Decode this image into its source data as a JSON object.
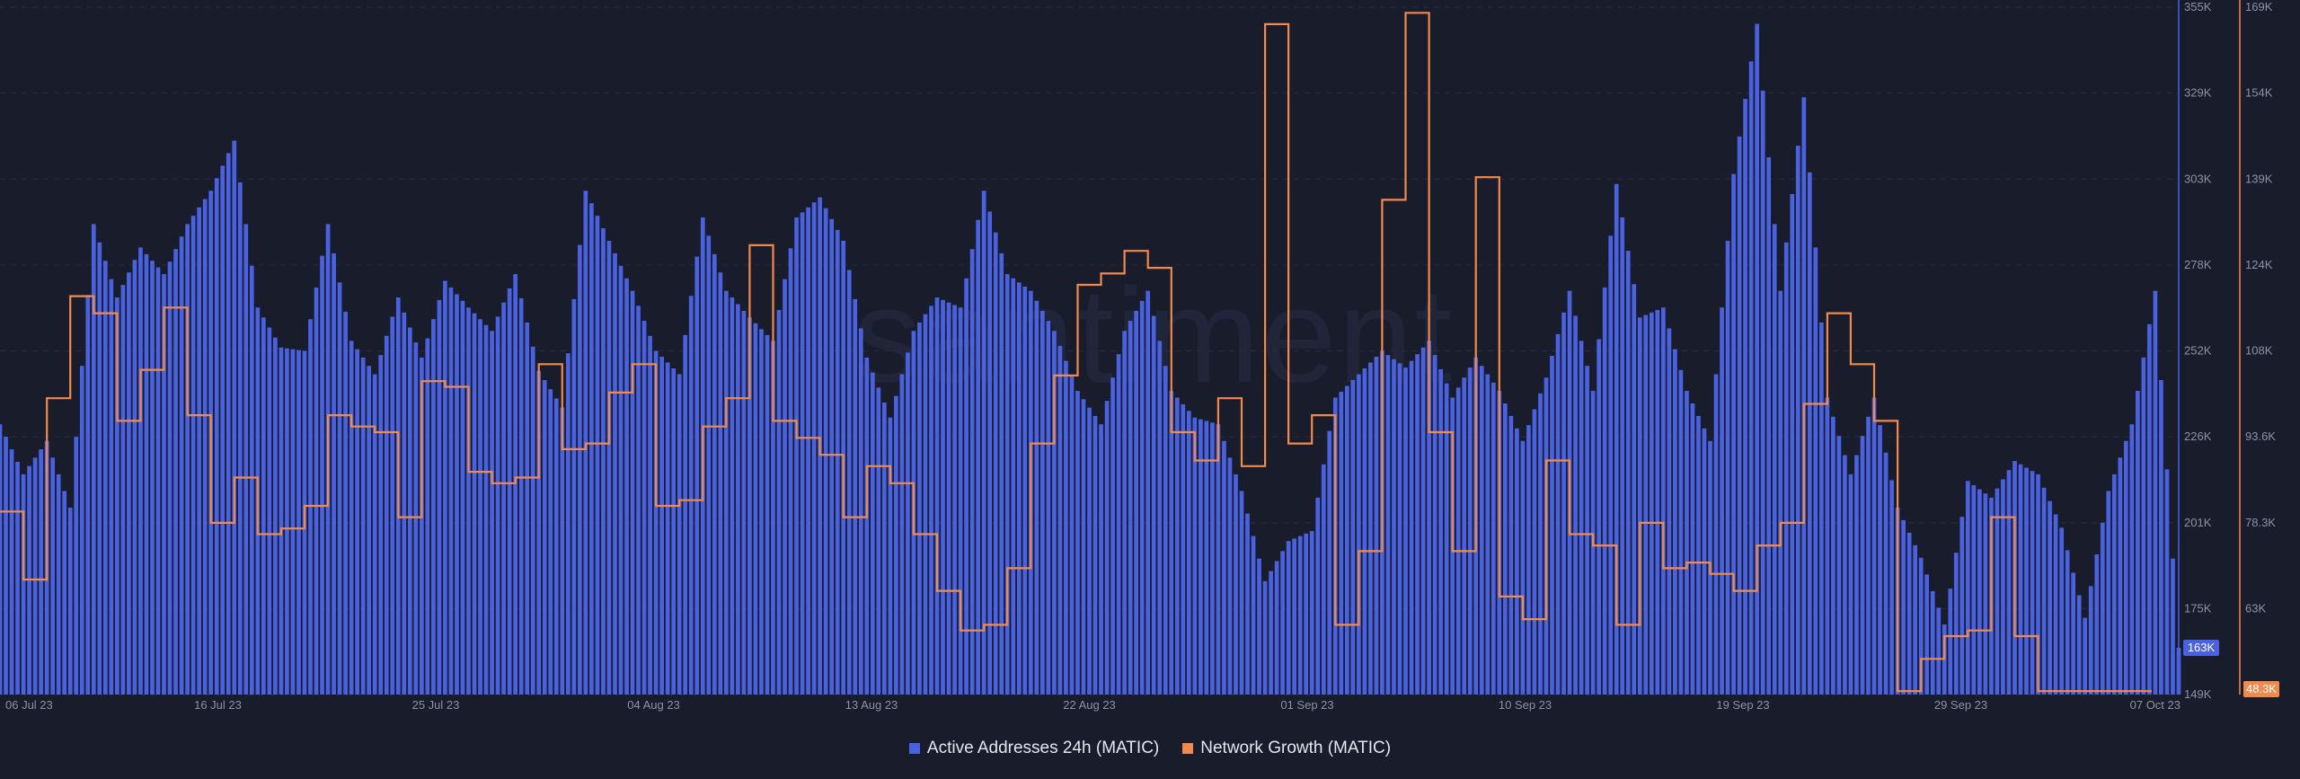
{
  "watermark": "santiment.",
  "chart_data": {
    "type": "bar+line",
    "x_ticks": [
      "06 Jul 23",
      "16 Jul 23",
      "25 Jul 23",
      "04 Aug 23",
      "13 Aug 23",
      "22 Aug 23",
      "01 Sep 23",
      "10 Sep 23",
      "19 Sep 23",
      "29 Sep 23",
      "07 Oct 23"
    ],
    "x_range": [
      "2023-07-06",
      "2023-10-07"
    ],
    "grid": true,
    "legend_placement": "bottom-center",
    "series": [
      {
        "name": "Active Addresses 24h (MATIC)",
        "type": "bar",
        "axis": "left",
        "color": "#4a62e0",
        "last_value_label": "163K",
        "ylim": [
          149000,
          355000
        ],
        "y_ticks": [
          "149K",
          "175K",
          "201K",
          "226K",
          "252K",
          "278K",
          "303K",
          "329K",
          "355K"
        ],
        "points": [
          [
            "2023-07-06",
            230000
          ],
          [
            "2023-07-07",
            215000
          ],
          [
            "2023-07-08",
            225000
          ],
          [
            "2023-07-09",
            205000
          ],
          [
            "2023-07-10",
            290000
          ],
          [
            "2023-07-11",
            268000
          ],
          [
            "2023-07-12",
            283000
          ],
          [
            "2023-07-13",
            275000
          ],
          [
            "2023-07-14",
            290000
          ],
          [
            "2023-07-15",
            300000
          ],
          [
            "2023-07-16",
            315000
          ],
          [
            "2023-07-17",
            265000
          ],
          [
            "2023-07-18",
            253000
          ],
          [
            "2023-07-19",
            252000
          ],
          [
            "2023-07-20",
            290000
          ],
          [
            "2023-07-21",
            255000
          ],
          [
            "2023-07-22",
            245000
          ],
          [
            "2023-07-23",
            268000
          ],
          [
            "2023-07-24",
            250000
          ],
          [
            "2023-07-25",
            273000
          ],
          [
            "2023-07-26",
            265000
          ],
          [
            "2023-07-27",
            258000
          ],
          [
            "2023-07-28",
            275000
          ],
          [
            "2023-07-29",
            246000
          ],
          [
            "2023-07-30",
            235000
          ],
          [
            "2023-07-31",
            300000
          ],
          [
            "2023-08-01",
            285000
          ],
          [
            "2023-08-02",
            270000
          ],
          [
            "2023-08-03",
            252000
          ],
          [
            "2023-08-04",
            245000
          ],
          [
            "2023-08-05",
            292000
          ],
          [
            "2023-08-06",
            270000
          ],
          [
            "2023-08-07",
            262000
          ],
          [
            "2023-08-08",
            255000
          ],
          [
            "2023-08-09",
            292000
          ],
          [
            "2023-08-10",
            298000
          ],
          [
            "2023-08-11",
            285000
          ],
          [
            "2023-08-12",
            250000
          ],
          [
            "2023-08-13",
            232000
          ],
          [
            "2023-08-14",
            258000
          ],
          [
            "2023-08-15",
            268000
          ],
          [
            "2023-08-16",
            265000
          ],
          [
            "2023-08-17",
            300000
          ],
          [
            "2023-08-18",
            275000
          ],
          [
            "2023-08-19",
            270000
          ],
          [
            "2023-08-20",
            258000
          ],
          [
            "2023-08-21",
            240000
          ],
          [
            "2023-08-22",
            230000
          ],
          [
            "2023-08-23",
            258000
          ],
          [
            "2023-08-24",
            270000
          ],
          [
            "2023-08-25",
            240000
          ],
          [
            "2023-08-26",
            232000
          ],
          [
            "2023-08-27",
            230000
          ],
          [
            "2023-08-28",
            210000
          ],
          [
            "2023-08-29",
            183000
          ],
          [
            "2023-08-30",
            195000
          ],
          [
            "2023-08-31",
            198000
          ],
          [
            "2023-09-01",
            238000
          ],
          [
            "2023-09-02",
            245000
          ],
          [
            "2023-09-03",
            252000
          ],
          [
            "2023-09-04",
            247000
          ],
          [
            "2023-09-05",
            255000
          ],
          [
            "2023-09-06",
            238000
          ],
          [
            "2023-09-07",
            250000
          ],
          [
            "2023-09-08",
            240000
          ],
          [
            "2023-09-09",
            225000
          ],
          [
            "2023-09-10",
            244000
          ],
          [
            "2023-09-11",
            270000
          ],
          [
            "2023-09-12",
            240000
          ],
          [
            "2023-09-13",
            302000
          ],
          [
            "2023-09-14",
            262000
          ],
          [
            "2023-09-15",
            265000
          ],
          [
            "2023-09-16",
            240000
          ],
          [
            "2023-09-17",
            225000
          ],
          [
            "2023-09-18",
            305000
          ],
          [
            "2023-09-19",
            350000
          ],
          [
            "2023-09-20",
            270000
          ],
          [
            "2023-09-21",
            328000
          ],
          [
            "2023-09-22",
            238000
          ],
          [
            "2023-09-23",
            215000
          ],
          [
            "2023-09-24",
            238000
          ],
          [
            "2023-09-25",
            205000
          ],
          [
            "2023-09-26",
            190000
          ],
          [
            "2023-09-27",
            170000
          ],
          [
            "2023-09-28",
            213000
          ],
          [
            "2023-09-29",
            208000
          ],
          [
            "2023-09-30",
            219000
          ],
          [
            "2023-10-01",
            215000
          ],
          [
            "2023-10-02",
            199000
          ],
          [
            "2023-10-03",
            172000
          ],
          [
            "2023-10-04",
            210000
          ],
          [
            "2023-10-05",
            230000
          ],
          [
            "2023-10-06",
            270000
          ],
          [
            "2023-10-07",
            163000
          ]
        ]
      },
      {
        "name": "Network Growth (MATIC)",
        "type": "line",
        "axis": "right",
        "color": "#f28a4e",
        "last_value_label": "48.3K",
        "ylim": [
          47700,
          169000
        ],
        "y_ticks": [
          "",
          "63K",
          "78.3K",
          "93.6K",
          "108K",
          "124K",
          "139K",
          "154K",
          "169K"
        ],
        "points": [
          [
            "2023-07-06",
            80000
          ],
          [
            "2023-07-07",
            68000
          ],
          [
            "2023-07-08",
            100000
          ],
          [
            "2023-07-09",
            118000
          ],
          [
            "2023-07-10",
            115000
          ],
          [
            "2023-07-11",
            96000
          ],
          [
            "2023-07-12",
            105000
          ],
          [
            "2023-07-13",
            116000
          ],
          [
            "2023-07-14",
            97000
          ],
          [
            "2023-07-15",
            78000
          ],
          [
            "2023-07-16",
            86000
          ],
          [
            "2023-07-17",
            76000
          ],
          [
            "2023-07-18",
            77000
          ],
          [
            "2023-07-19",
            81000
          ],
          [
            "2023-07-20",
            97000
          ],
          [
            "2023-07-21",
            95000
          ],
          [
            "2023-07-22",
            94000
          ],
          [
            "2023-07-23",
            79000
          ],
          [
            "2023-07-24",
            103000
          ],
          [
            "2023-07-25",
            102000
          ],
          [
            "2023-07-26",
            87000
          ],
          [
            "2023-07-27",
            85000
          ],
          [
            "2023-07-28",
            86000
          ],
          [
            "2023-07-29",
            106000
          ],
          [
            "2023-07-30",
            91000
          ],
          [
            "2023-07-31",
            92000
          ],
          [
            "2023-08-01",
            101000
          ],
          [
            "2023-08-02",
            106000
          ],
          [
            "2023-08-03",
            81000
          ],
          [
            "2023-08-04",
            82000
          ],
          [
            "2023-08-05",
            95000
          ],
          [
            "2023-08-06",
            100000
          ],
          [
            "2023-08-07",
            127000
          ],
          [
            "2023-08-08",
            96000
          ],
          [
            "2023-08-09",
            93000
          ],
          [
            "2023-08-10",
            90000
          ],
          [
            "2023-08-11",
            79000
          ],
          [
            "2023-08-12",
            88000
          ],
          [
            "2023-08-13",
            85000
          ],
          [
            "2023-08-14",
            76000
          ],
          [
            "2023-08-15",
            66000
          ],
          [
            "2023-08-16",
            59000
          ],
          [
            "2023-08-17",
            60000
          ],
          [
            "2023-08-18",
            70000
          ],
          [
            "2023-08-19",
            92000
          ],
          [
            "2023-08-20",
            104000
          ],
          [
            "2023-08-21",
            120000
          ],
          [
            "2023-08-22",
            122000
          ],
          [
            "2023-08-23",
            126000
          ],
          [
            "2023-08-24",
            123000
          ],
          [
            "2023-08-25",
            94000
          ],
          [
            "2023-08-26",
            89000
          ],
          [
            "2023-08-27",
            100000
          ],
          [
            "2023-08-28",
            88000
          ],
          [
            "2023-08-29",
            166000
          ],
          [
            "2023-08-30",
            92000
          ],
          [
            "2023-08-31",
            97000
          ],
          [
            "2023-09-01",
            60000
          ],
          [
            "2023-09-02",
            73000
          ],
          [
            "2023-09-03",
            135000
          ],
          [
            "2023-09-04",
            168000
          ],
          [
            "2023-09-05",
            94000
          ],
          [
            "2023-09-06",
            73000
          ],
          [
            "2023-09-07",
            139000
          ],
          [
            "2023-09-08",
            65000
          ],
          [
            "2023-09-09",
            61000
          ],
          [
            "2023-09-10",
            89000
          ],
          [
            "2023-09-11",
            76000
          ],
          [
            "2023-09-12",
            74000
          ],
          [
            "2023-09-13",
            60000
          ],
          [
            "2023-09-14",
            78000
          ],
          [
            "2023-09-15",
            70000
          ],
          [
            "2023-09-16",
            71000
          ],
          [
            "2023-09-17",
            69000
          ],
          [
            "2023-09-18",
            66000
          ],
          [
            "2023-09-19",
            74000
          ],
          [
            "2023-09-20",
            78000
          ],
          [
            "2023-09-21",
            99000
          ],
          [
            "2023-09-22",
            115000
          ],
          [
            "2023-09-23",
            106000
          ],
          [
            "2023-09-24",
            96000
          ],
          [
            "2023-09-25",
            48300
          ],
          [
            "2023-09-26",
            54000
          ],
          [
            "2023-09-27",
            58000
          ],
          [
            "2023-09-28",
            59000
          ],
          [
            "2023-09-29",
            79000
          ],
          [
            "2023-09-30",
            58000
          ],
          [
            "2023-10-01",
            48300
          ]
        ]
      }
    ]
  }
}
